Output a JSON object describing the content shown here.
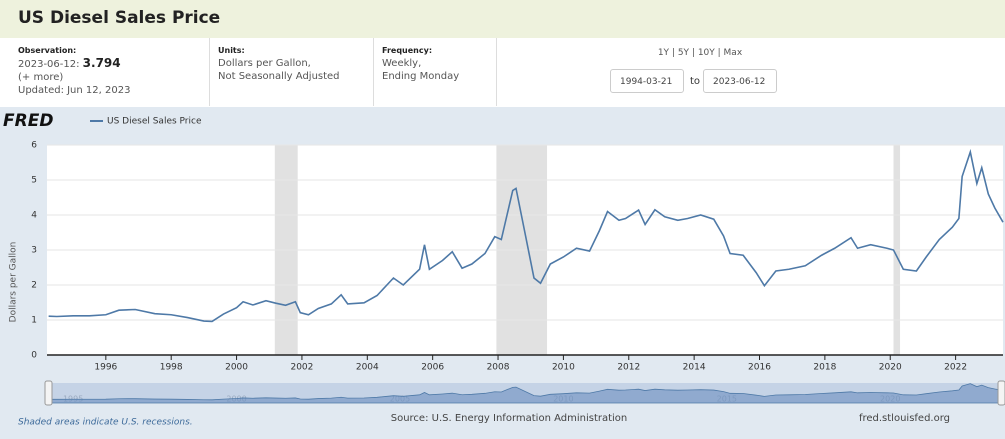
{
  "header": {
    "title": "US Diesel Sales Price",
    "observation_label": "Observation:",
    "observation_date": "2023-06-12:",
    "observation_value": 3.794,
    "more": "(+ more)",
    "updated": "Updated: Jun 12, 2023",
    "units_label": "Units:",
    "units_1": "Dollars per Gallon,",
    "units_2": "Not Seasonally Adjusted",
    "frequency_label": "Frequency:",
    "frequency_1": "Weekly,",
    "frequency_2": "Ending Monday",
    "ranges": [
      "1Y",
      "5Y",
      "10Y",
      "Max"
    ],
    "start_date": "1994-03-21",
    "to": "to",
    "end_date": "2023-06-12"
  },
  "logo": "FRED",
  "chart_data": {
    "type": "line",
    "y_label": "Dollars per Gallon",
    "x": [
      1994.25,
      1994.5,
      1995.0,
      1995.5,
      1996.0,
      1996.4,
      1996.9,
      1997.5,
      1998.0,
      1998.5,
      1999.0,
      1999.25,
      1999.6,
      2000.0,
      2000.2,
      2000.5,
      2000.9,
      2001.2,
      2001.5,
      2001.8,
      2001.95,
      2002.2,
      2002.5,
      2002.9,
      2003.2,
      2003.4,
      2003.9,
      2004.3,
      2004.8,
      2005.1,
      2005.6,
      2005.75,
      2005.9,
      2006.3,
      2006.6,
      2006.9,
      2007.2,
      2007.6,
      2007.9,
      2008.1,
      2008.45,
      2008.55,
      2008.8,
      2009.1,
      2009.3,
      2009.6,
      2010.0,
      2010.4,
      2010.8,
      2011.1,
      2011.35,
      2011.7,
      2011.9,
      2012.3,
      2012.5,
      2012.8,
      2013.1,
      2013.5,
      2013.8,
      2014.2,
      2014.6,
      2014.9,
      2015.1,
      2015.5,
      2015.9,
      2016.15,
      2016.5,
      2016.9,
      2017.4,
      2017.9,
      2018.3,
      2018.8,
      2019.0,
      2019.4,
      2019.9,
      2020.1,
      2020.4,
      2020.8,
      2021.1,
      2021.5,
      2021.9,
      2022.1,
      2022.2,
      2022.45,
      2022.65,
      2022.8,
      2023.0,
      2023.2,
      2023.45
    ],
    "series": [
      {
        "name": "US Diesel Sales Price",
        "color": "#4e79a7",
        "values": [
          1.11,
          1.1,
          1.12,
          1.12,
          1.15,
          1.28,
          1.3,
          1.18,
          1.15,
          1.07,
          0.97,
          0.96,
          1.17,
          1.35,
          1.52,
          1.43,
          1.55,
          1.48,
          1.42,
          1.52,
          1.21,
          1.15,
          1.33,
          1.46,
          1.72,
          1.46,
          1.49,
          1.7,
          2.2,
          2.0,
          2.45,
          3.15,
          2.45,
          2.7,
          2.95,
          2.48,
          2.6,
          2.9,
          3.38,
          3.3,
          4.7,
          4.76,
          3.6,
          2.2,
          2.05,
          2.6,
          2.8,
          3.05,
          2.97,
          3.55,
          4.1,
          3.85,
          3.9,
          4.14,
          3.73,
          4.15,
          3.95,
          3.85,
          3.9,
          4.0,
          3.88,
          3.4,
          2.9,
          2.85,
          2.35,
          1.98,
          2.4,
          2.45,
          2.55,
          2.85,
          3.05,
          3.35,
          3.05,
          3.15,
          3.05,
          3.0,
          2.45,
          2.4,
          2.8,
          3.3,
          3.65,
          3.9,
          5.1,
          5.8,
          4.9,
          5.35,
          4.6,
          4.2,
          3.794
        ]
      }
    ],
    "recessions": [
      [
        2001.17,
        2001.87
      ],
      [
        2007.95,
        2009.5
      ],
      [
        2020.1,
        2020.3
      ]
    ],
    "xlim": [
      1994.2,
      2023.45
    ],
    "ylim": [
      0,
      6
    ],
    "xticks": [
      1996,
      1998,
      2000,
      2002,
      2004,
      2006,
      2008,
      2010,
      2012,
      2014,
      2016,
      2018,
      2020,
      2022
    ],
    "yticks": [
      0,
      1,
      2,
      3,
      4,
      5,
      6
    ],
    "grid": true,
    "recession_color": "#e1e1e1",
    "navigator_ticks": [
      1995,
      2000,
      2005,
      2010,
      2015,
      2020
    ]
  },
  "footer": {
    "note": "Shaded areas indicate U.S. recessions.",
    "source": "Source: U.S. Energy Information Administration",
    "site": "fred.stlouisfed.org"
  }
}
